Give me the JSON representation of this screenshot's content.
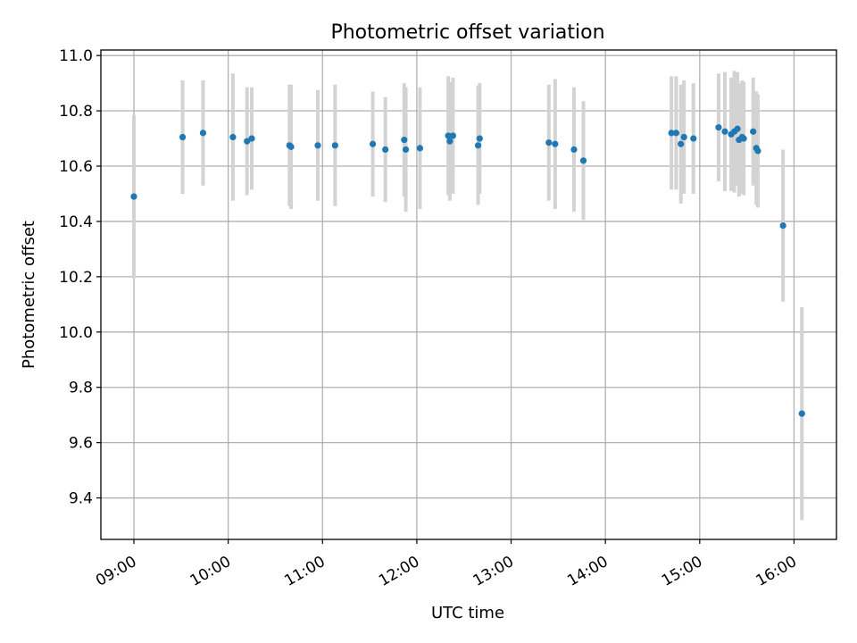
{
  "chart_data": {
    "type": "scatter",
    "title": "Photometric offset variation",
    "xlabel": "UTC time",
    "ylabel": "Photometric offset",
    "xlim": [
      "08:39",
      "16:27"
    ],
    "ylim": [
      9.25,
      11.02
    ],
    "x_ticks": [
      "09:00",
      "10:00",
      "11:00",
      "12:00",
      "13:00",
      "14:00",
      "15:00",
      "16:00"
    ],
    "y_ticks": [
      "9.4",
      "9.6",
      "9.8",
      "10.0",
      "10.2",
      "10.4",
      "10.6",
      "10.8",
      "11.0"
    ],
    "grid": true,
    "marker_color": "#1f77b4",
    "errorbar_color": "#d3d3d3",
    "series": [
      {
        "x": [
          "09:00",
          "09:31",
          "09:44",
          "10:03",
          "10:12",
          "10:15",
          "10:39",
          "10:40",
          "10:57",
          "11:08",
          "11:32",
          "11:40",
          "11:52",
          "11:53",
          "12:02",
          "12:20",
          "12:21",
          "12:23",
          "12:39",
          "12:40",
          "13:24",
          "13:28",
          "13:40",
          "13:46",
          "14:42",
          "14:45",
          "14:48",
          "14:50",
          "14:56",
          "15:12",
          "15:16",
          "15:20",
          "15:22",
          "15:24",
          "15:25",
          "15:27",
          "15:28",
          "15:34",
          "15:36",
          "15:37"
        ],
        "y": [
          10.49,
          10.705,
          10.72,
          10.705,
          10.69,
          10.7,
          10.675,
          10.67,
          10.675,
          10.675,
          10.68,
          10.66,
          10.695,
          10.66,
          10.665,
          10.71,
          10.69,
          10.71,
          10.675,
          10.7,
          10.685,
          10.68,
          10.66,
          10.62,
          10.72,
          10.72,
          10.68,
          10.705,
          10.7,
          10.74,
          10.725,
          10.715,
          10.725,
          10.735,
          10.695,
          10.705,
          10.7,
          10.725,
          10.665,
          10.655
        ],
        "yerr": [
          0.295,
          0.205,
          0.19,
          0.23,
          0.195,
          0.185,
          0.22,
          0.225,
          0.2,
          0.22,
          0.19,
          0.19,
          0.205,
          0.225,
          0.22,
          0.215,
          0.215,
          0.21,
          0.215,
          0.2,
          0.21,
          0.235,
          0.225,
          0.215,
          0.205,
          0.205,
          0.215,
          0.205,
          0.2,
          0.195,
          0.215,
          0.205,
          0.22,
          0.205,
          0.205,
          0.205,
          0.205,
          0.195,
          0.205,
          0.205
        ]
      },
      {
        "x": [
          "15:53",
          "16:05"
        ],
        "y": [
          10.385,
          9.705
        ],
        "yerr": [
          0.275,
          0.385
        ]
      }
    ]
  }
}
